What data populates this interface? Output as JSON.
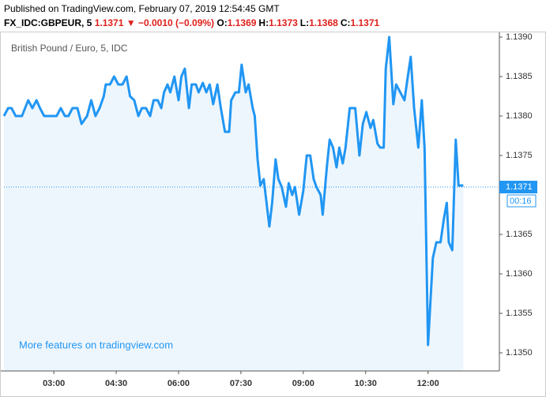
{
  "header": {
    "published": "Published on TradingView.com, February 07, 2019 12:54:45 GMT",
    "symbol": "FX_IDC:GBPEUR, 5",
    "last": "1.1371",
    "change": "▼ −0.0010 (−0.09%)",
    "ohlc": [
      {
        "label": "O:",
        "value": "1.1369"
      },
      {
        "label": "H:",
        "value": "1.1373"
      },
      {
        "label": "L:",
        "value": "1.1368"
      },
      {
        "label": "C:",
        "value": "1.1371"
      }
    ]
  },
  "chart_data": {
    "type": "line",
    "title": "British Pound / Euro, 5, IDC",
    "annotation": "More features on tradingview.com",
    "x": [
      108,
      114,
      119,
      125,
      134,
      143,
      149,
      155,
      160,
      166,
      175,
      184,
      190,
      196,
      201,
      207,
      214,
      220,
      228,
      234,
      240,
      246,
      252,
      255,
      261,
      267,
      273,
      279,
      285,
      290,
      296,
      302,
      307,
      313,
      319,
      324,
      330,
      335,
      339,
      344,
      348,
      354,
      360,
      364,
      369,
      375,
      379,
      385,
      389,
      395,
      400,
      405,
      410,
      416,
      421,
      427,
      433,
      436,
      442,
      447,
      451,
      457,
      461,
      467,
      470,
      474,
      478,
      483,
      491,
      495,
      500,
      504,
      509,
      515,
      519,
      524,
      528,
      534,
      540,
      545,
      550,
      555,
      559,
      565,
      568,
      574,
      578,
      583,
      588,
      592,
      597,
      601,
      607,
      615,
      621,
      626,
      631,
      637,
      641,
      647,
      651,
      656,
      659,
      664,
      670,
      674,
      680,
      686,
      690,
      695,
      700,
      706,
      711,
      715,
      720,
      727,
      732,
      738,
      743,
      747,
      750,
      755,
      760,
      764,
      771
    ],
    "series": [
      {
        "name": "GBPEUR",
        "color": "#2196f3",
        "values": [
          1.138,
          1.1381,
          1.1381,
          1.138,
          1.138,
          1.1382,
          1.1381,
          1.1382,
          1.1381,
          1.138,
          1.138,
          1.138,
          1.1381,
          1.138,
          1.138,
          1.1381,
          1.1381,
          1.1379,
          1.138,
          1.1382,
          1.138,
          1.1381,
          1.13825,
          1.1384,
          1.1384,
          1.1385,
          1.1384,
          1.1384,
          1.1385,
          1.13825,
          1.1382,
          1.138,
          1.1381,
          1.1381,
          1.138,
          1.1382,
          1.1382,
          1.1381,
          1.1383,
          1.1384,
          1.1383,
          1.1385,
          1.1382,
          1.1385,
          1.1386,
          1.1381,
          1.1384,
          1.1384,
          1.1383,
          1.13842,
          1.1383,
          1.1384,
          1.13815,
          1.1384,
          1.1381,
          1.1378,
          1.1378,
          1.1382,
          1.1383,
          1.1383,
          1.13865,
          1.1383,
          1.1384,
          1.1381,
          1.138,
          1.13745,
          1.13712,
          1.1372,
          1.1366,
          1.1369,
          1.13745,
          1.1372,
          1.1371,
          1.13685,
          1.13715,
          1.137,
          1.1371,
          1.13675,
          1.13705,
          1.1375,
          1.1375,
          1.1372,
          1.1371,
          1.137,
          1.13675,
          1.13735,
          1.1377,
          1.1376,
          1.13735,
          1.1376,
          1.1374,
          1.1376,
          1.1381,
          1.1381,
          1.1375,
          1.1379,
          1.13805,
          1.13785,
          1.13795,
          1.13765,
          1.1376,
          1.1376,
          1.1386,
          1.139,
          1.13815,
          1.1384,
          1.1383,
          1.1382,
          1.13845,
          1.13875,
          1.1381,
          1.1376,
          1.1382,
          1.1376,
          1.1351,
          1.1362,
          1.1364,
          1.1364,
          1.1367,
          1.1369,
          1.1364,
          1.1363,
          1.1377,
          1.13712,
          1.13712
        ]
      }
    ],
    "xlim": [
      108,
      823
    ],
    "xticks": [
      {
        "value": 180,
        "label": "03:00"
      },
      {
        "value": 270,
        "label": "04:30"
      },
      {
        "value": 360,
        "label": "06:00"
      },
      {
        "value": 450,
        "label": "07:30"
      },
      {
        "value": 540,
        "label": "09:00"
      },
      {
        "value": 630,
        "label": "10:30"
      },
      {
        "value": 720,
        "label": "12:00"
      }
    ],
    "ylim": [
      1.13477,
      1.13905
    ],
    "yticks": [
      {
        "value": 1.139,
        "label": "1.1390"
      },
      {
        "value": 1.1385,
        "label": "1.1385"
      },
      {
        "value": 1.138,
        "label": "1.1380"
      },
      {
        "value": 1.1375,
        "label": "1.1375"
      },
      {
        "value": 1.1365,
        "label": "1.1365"
      },
      {
        "value": 1.136,
        "label": "1.1360"
      },
      {
        "value": 1.1355,
        "label": "1.1355"
      },
      {
        "value": 1.135,
        "label": "1.1350"
      }
    ],
    "price_label": {
      "value": 1.1371,
      "label": "1.1371"
    },
    "countdown": "00:16",
    "area_color": "#eef6fd",
    "grid": false
  }
}
